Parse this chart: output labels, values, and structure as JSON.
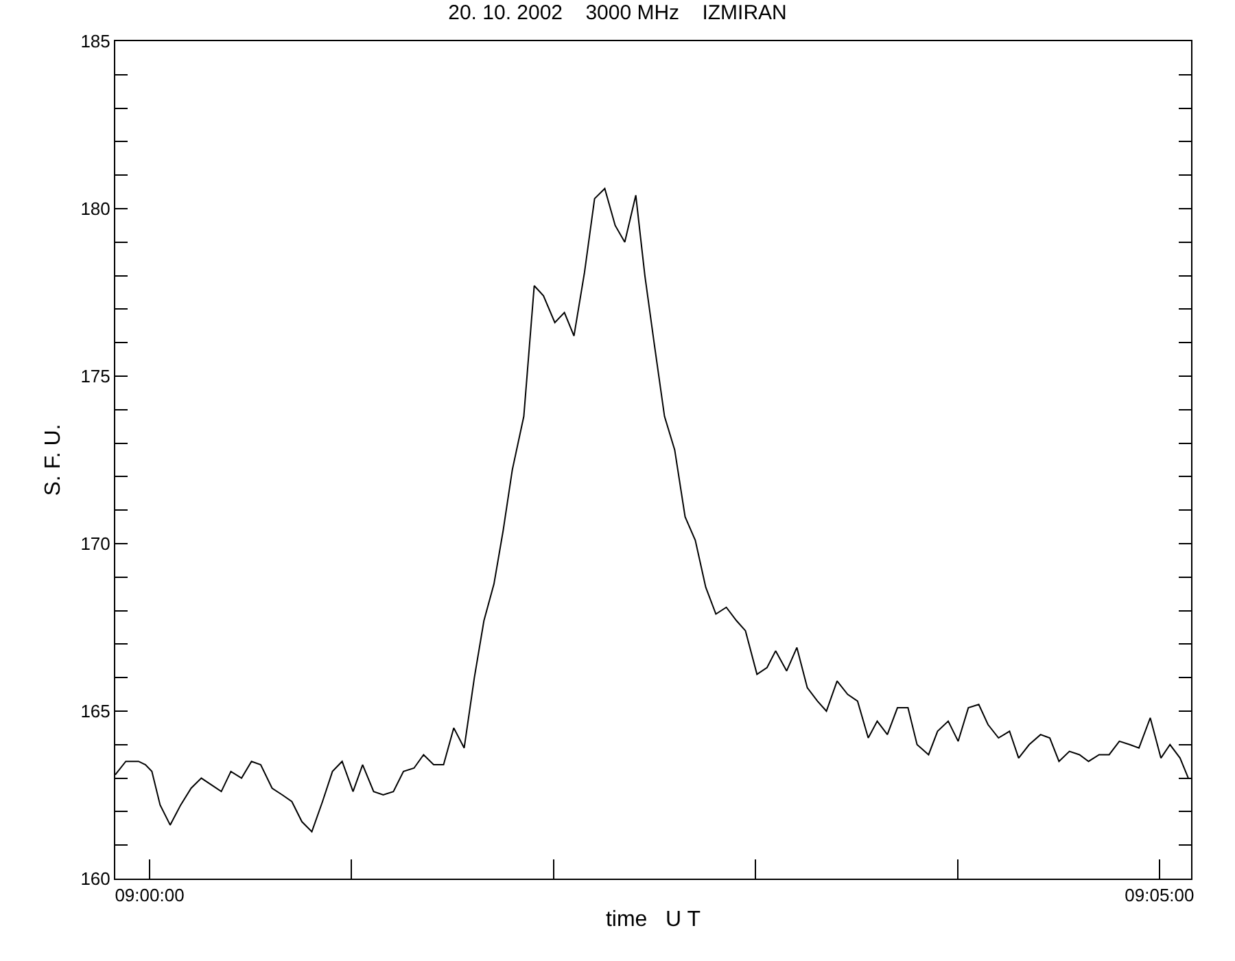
{
  "chart_data": {
    "type": "line",
    "title": "20. 10. 2002    3000 MHz    IZMIRAN",
    "xlabel": "time   U T",
    "ylabel": "S. F. U.",
    "x": [
      8.99717,
      8.99804,
      8.99909,
      8.99966,
      9.00019,
      9.00087,
      9.0017,
      9.00257,
      9.00343,
      9.00427,
      9.0051,
      9.00592,
      9.00671,
      9.00759,
      9.00841,
      9.00917,
      9.01011,
      9.01095,
      9.01174,
      9.01257,
      9.01339,
      9.01427,
      9.01509,
      9.01589,
      9.01679,
      9.01758,
      9.01849,
      9.01928,
      9.02012,
      9.02095,
      9.02182,
      9.02261,
      9.02344,
      9.02426,
      9.0251,
      9.02596,
      9.0268,
      9.02759,
      9.02842,
      9.02918,
      9.02993,
      9.03088,
      9.03174,
      9.0325,
      9.03344,
      9.03423,
      9.03502,
      9.03589,
      9.03672,
      9.03756,
      9.03842,
      9.03921,
      9.04012,
      9.04087,
      9.04163,
      9.04249,
      9.04333,
      9.04419,
      9.04503,
      9.04589,
      9.04673,
      9.04759,
      9.04843,
      9.04917,
      9.05012,
      9.05095,
      9.05166,
      9.05257,
      9.05341,
      9.05427,
      9.05511,
      9.05585,
      9.05673,
      9.0576,
      9.05842,
      9.0593,
      9.06004,
      9.06088,
      9.06171,
      9.06258,
      9.06333,
      9.06428,
      9.06502,
      9.0659,
      9.06672,
      9.06756,
      9.06842,
      9.06918,
      9.07005,
      9.07096,
      9.07171,
      9.07258,
      9.07352,
      9.07428,
      9.07504,
      9.0759,
      9.07673,
      9.07748,
      9.07835,
      9.07918,
      9.08002,
      9.08088,
      9.08164,
      9.08257,
      9.08345,
      9.0842,
      9.08503,
      9.08571
    ],
    "series": [
      {
        "color": "#000000",
        "values": [
          163.1,
          163.5,
          163.5,
          163.4,
          163.2,
          162.2,
          161.6,
          162.2,
          162.7,
          163.0,
          162.8,
          162.6,
          163.2,
          163.0,
          163.5,
          163.4,
          162.7,
          162.5,
          162.3,
          161.7,
          161.4,
          162.3,
          163.2,
          163.5,
          162.6,
          163.4,
          162.6,
          162.5,
          162.6,
          163.2,
          163.3,
          163.7,
          163.4,
          163.4,
          164.5,
          163.9,
          166.0,
          167.7,
          168.8,
          170.4,
          172.2,
          173.8,
          177.7,
          177.4,
          176.6,
          176.9,
          176.2,
          178.1,
          180.3,
          180.6,
          179.5,
          179.0,
          180.4,
          178.0,
          176.0,
          173.8,
          172.8,
          170.8,
          170.1,
          168.7,
          167.9,
          168.1,
          167.7,
          167.4,
          166.1,
          166.3,
          166.8,
          166.2,
          166.9,
          165.7,
          165.3,
          165.0,
          165.9,
          165.5,
          165.3,
          164.2,
          164.7,
          164.3,
          165.1,
          165.1,
          164.0,
          163.7,
          164.4,
          164.7,
          164.1,
          165.1,
          165.2,
          164.6,
          164.2,
          164.4,
          163.6,
          164.0,
          164.3,
          164.2,
          163.5,
          163.8,
          163.7,
          163.5,
          163.7,
          163.7,
          164.1,
          164.0,
          163.9,
          164.8,
          163.6,
          164.0,
          163.6,
          163.0
        ]
      }
    ],
    "xlim": [
      8.99717,
      9.08594
    ],
    "xticks": [
      {
        "value": 9,
        "label": "09:00:00"
      },
      {
        "value": 9.01667,
        "label": null
      },
      {
        "value": 9.03333,
        "label": null
      },
      {
        "value": 9.05,
        "label": null
      },
      {
        "value": 9.06667,
        "label": null
      },
      {
        "value": 9.08333,
        "label": "09:05:00"
      }
    ],
    "ylim": [
      160,
      185
    ],
    "yticks": [
      160,
      {
        "value": 161,
        "label": null
      },
      {
        "value": 162,
        "label": null
      },
      {
        "value": 163,
        "label": null
      },
      {
        "value": 164,
        "label": null
      },
      165,
      {
        "value": 166,
        "label": null
      },
      {
        "value": 167,
        "label": null
      },
      {
        "value": 168,
        "label": null
      },
      {
        "value": 169,
        "label": null
      },
      170,
      {
        "value": 171,
        "label": null
      },
      {
        "value": 172,
        "label": null
      },
      {
        "value": 173,
        "label": null
      },
      {
        "value": 174,
        "label": null
      },
      175,
      {
        "value": 176,
        "label": null
      },
      {
        "value": 177,
        "label": null
      },
      {
        "value": 178,
        "label": null
      },
      {
        "value": 179,
        "label": null
      },
      180,
      {
        "value": 181,
        "label": null
      },
      {
        "value": 182,
        "label": null
      },
      {
        "value": 183,
        "label": null
      },
      {
        "value": 184,
        "label": null
      },
      185
    ],
    "marker": "none",
    "line_style": "solid"
  }
}
